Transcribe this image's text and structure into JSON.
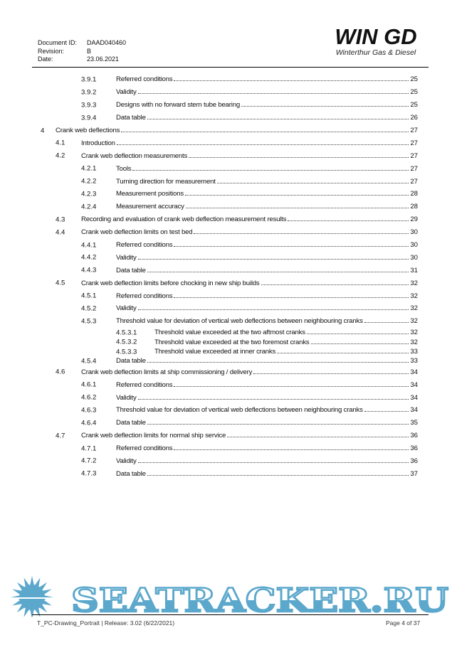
{
  "header": {
    "document_id_label": "Document ID:",
    "document_id": "DAAD040460",
    "revision_label": "Revision:",
    "revision": "B",
    "date_label": "Date:",
    "date": "23.06.2021"
  },
  "logo": {
    "name": "WIN GD",
    "tagline": "Winterthur Gas & Diesel"
  },
  "toc": [
    {
      "level": 3,
      "num": "3.9.1",
      "title": "Referred conditions",
      "page": "25"
    },
    {
      "level": 3,
      "num": "3.9.2",
      "title": "Validity",
      "page": "25"
    },
    {
      "level": 3,
      "num": "3.9.3",
      "title": "Designs with no forward stern tube bearing",
      "page": "25"
    },
    {
      "level": 3,
      "num": "3.9.4",
      "title": "Data table",
      "page": "26"
    },
    {
      "level": 1,
      "num": "4",
      "title": "Crank web deflections",
      "page": "27"
    },
    {
      "level": 2,
      "num": "4.1",
      "title": "Introduction",
      "page": "27"
    },
    {
      "level": 2,
      "num": "4.2",
      "title": "Crank web deflection measurements",
      "page": "27"
    },
    {
      "level": 3,
      "num": "4.2.1",
      "title": "Tools",
      "page": "27"
    },
    {
      "level": 3,
      "num": "4.2.2",
      "title": "Turning direction for measurement",
      "page": "27"
    },
    {
      "level": 3,
      "num": "4.2.3",
      "title": "Measurement positions",
      "page": "28"
    },
    {
      "level": 3,
      "num": "4.2.4",
      "title": "Measurement accuracy",
      "page": "28"
    },
    {
      "level": 2,
      "num": "4.3",
      "title": "Recording and evaluation of crank web deflection measurement results",
      "page": "29"
    },
    {
      "level": 2,
      "num": "4.4",
      "title": "Crank web deflection limits on test bed",
      "page": "30"
    },
    {
      "level": 3,
      "num": "4.4.1",
      "title": "Referred conditions",
      "page": "30"
    },
    {
      "level": 3,
      "num": "4.4.2",
      "title": "Validity",
      "page": "30"
    },
    {
      "level": 3,
      "num": "4.4.3",
      "title": "Data table",
      "page": "31"
    },
    {
      "level": 2,
      "num": "4.5",
      "title": "Crank web deflection limits before chocking in new ship builds",
      "page": "32"
    },
    {
      "level": 3,
      "num": "4.5.1",
      "title": "Referred conditions",
      "page": "32"
    },
    {
      "level": 3,
      "num": "4.5.2",
      "title": "Validity",
      "page": "32"
    },
    {
      "level": 3,
      "num": "4.5.3",
      "title": "Threshold value for deviation of vertical web deflections between neighbouring cranks",
      "page": "32"
    },
    {
      "level": 4,
      "num": "4.5.3.1",
      "title": "Threshold value exceeded at the two aftmost cranks",
      "page": "32"
    },
    {
      "level": 4,
      "num": "4.5.3.2",
      "title": "Threshold value exceeded at the two foremost cranks",
      "page": "32"
    },
    {
      "level": 4,
      "num": "4.5.3.3",
      "title": "Threshold value exceeded at inner cranks",
      "page": "33"
    },
    {
      "level": 3,
      "num": "4.5.4",
      "title": "Data table",
      "page": "33"
    },
    {
      "level": 2,
      "num": "4.6",
      "title": "Crank web deflection limits at ship commissioning / delivery",
      "page": "34"
    },
    {
      "level": 3,
      "num": "4.6.1",
      "title": "Referred conditions",
      "page": "34"
    },
    {
      "level": 3,
      "num": "4.6.2",
      "title": "Validity",
      "page": "34"
    },
    {
      "level": 3,
      "num": "4.6.3",
      "title": "Threshold value for deviation of vertical web deflections between neighbouring cranks",
      "page": "34"
    },
    {
      "level": 3,
      "num": "4.6.4",
      "title": "Data table",
      "page": "35"
    },
    {
      "level": 2,
      "num": "4.7",
      "title": "Crank web deflection limits for normal ship service",
      "page": "36"
    },
    {
      "level": 3,
      "num": "4.7.1",
      "title": "Referred conditions",
      "page": "36"
    },
    {
      "level": 3,
      "num": "4.7.2",
      "title": "Validity",
      "page": "36"
    },
    {
      "level": 3,
      "num": "4.7.3",
      "title": "Data table",
      "page": "37"
    }
  ],
  "footer": {
    "template": "T_PC-Drawing_Portrait",
    "release": "Release: 3.02 (6/22/2021)",
    "page": "Page 4 of 37"
  },
  "watermark": {
    "text": "SEATRACKER.RU",
    "color": "#5ba8cc"
  }
}
